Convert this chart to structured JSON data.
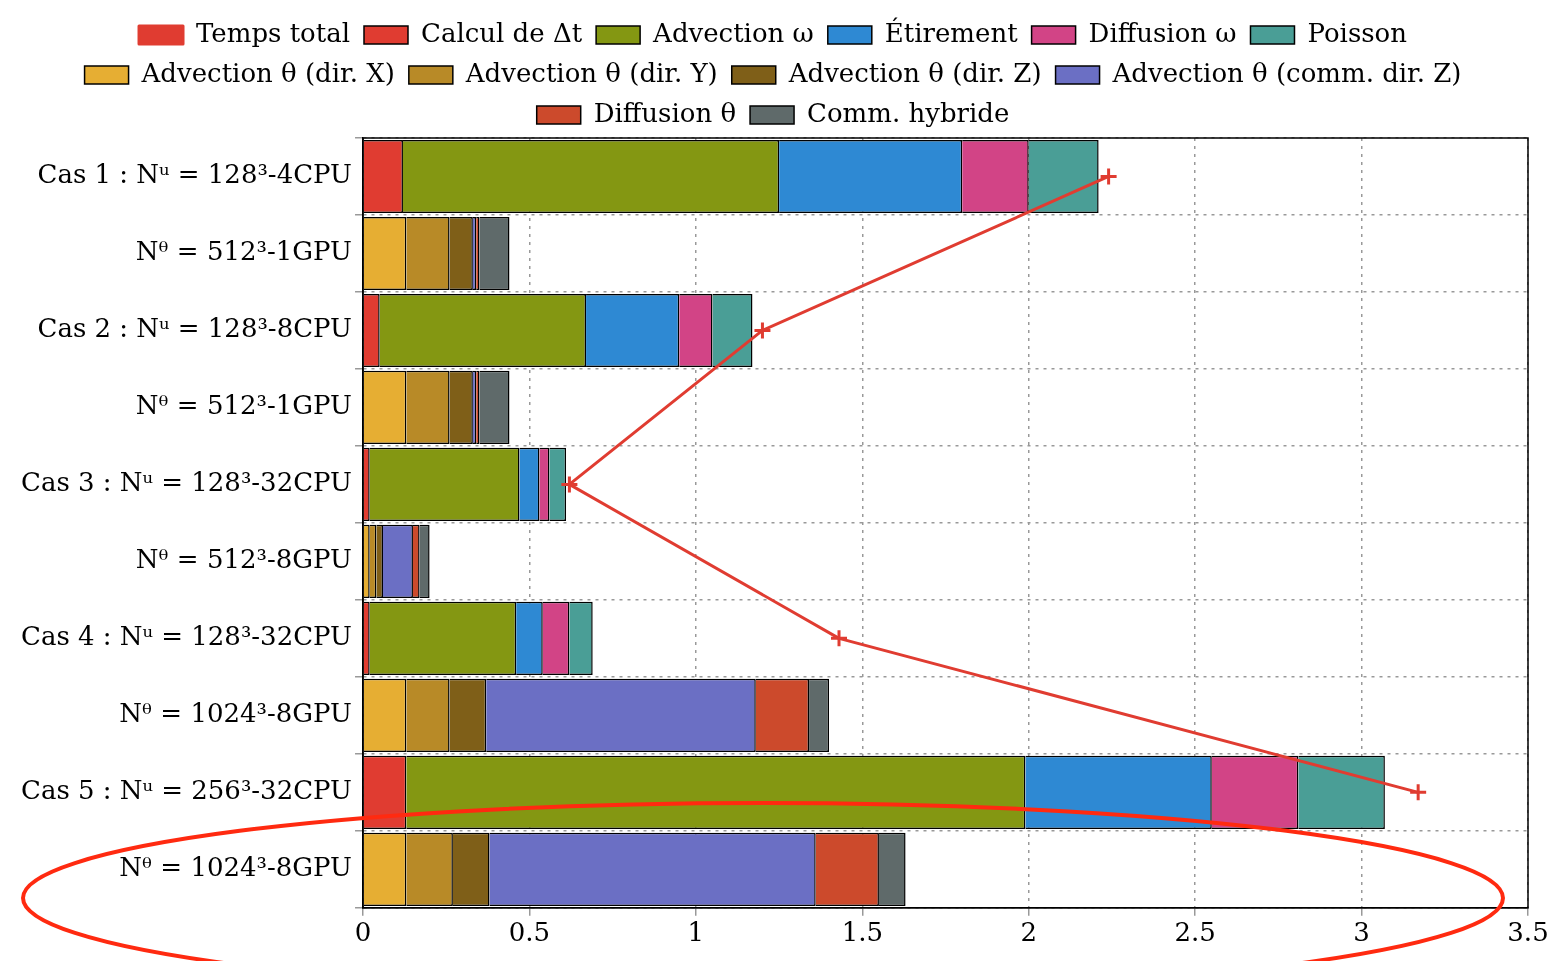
{
  "chart_data": {
    "type": "bar",
    "orientation": "horizontal",
    "stacked": true,
    "categories": [
      "Cas 1 : Nᵘ = 128³-4CPU",
      "Nᶿ = 512³-1GPU",
      "Cas 2 : Nᵘ = 128³-8CPU",
      "Nᶿ = 512³-1GPU",
      "Cas 3 : Nᵘ = 128³-32CPU",
      "Nᶿ = 512³-8GPU",
      "Cas 4 : Nᵘ = 128³-32CPU",
      "Nᶿ = 1024³-8GPU",
      "Cas 5 : Nᵘ = 256³-32CPU",
      "Nᶿ = 1024³-8GPU"
    ],
    "xlim": [
      0,
      3.5
    ],
    "xticks": [
      0,
      0.5,
      1,
      1.5,
      2,
      2.5,
      3,
      3.5
    ],
    "grid": true,
    "legend": "top",
    "series": [
      {
        "name": "Temps total",
        "type": "line",
        "color": "#e03c31",
        "marker": "cross",
        "values": [
          2.24,
          null,
          1.2,
          null,
          0.62,
          null,
          1.43,
          null,
          3.17,
          null
        ]
      },
      {
        "name": "Calcul de Δt",
        "color": "#e03c31",
        "values": [
          0.12,
          null,
          0.05,
          null,
          0.02,
          null,
          0.02,
          null,
          0.13,
          null
        ]
      },
      {
        "name": "Advection ω",
        "color": "#849712",
        "values": [
          1.13,
          null,
          0.62,
          null,
          0.45,
          null,
          0.44,
          null,
          1.86,
          null
        ]
      },
      {
        "name": "Étirement",
        "color": "#2e89d3",
        "values": [
          0.55,
          null,
          0.28,
          null,
          0.06,
          null,
          0.08,
          null,
          0.56,
          null
        ]
      },
      {
        "name": "Diffusion ω",
        "color": "#d24486",
        "values": [
          0.2,
          null,
          0.1,
          null,
          0.03,
          null,
          0.08,
          null,
          0.26,
          null
        ]
      },
      {
        "name": "Poisson",
        "color": "#4a9e96",
        "values": [
          0.21,
          null,
          0.12,
          null,
          0.05,
          null,
          0.07,
          null,
          0.26,
          null
        ]
      },
      {
        "name": "Advection θ (dir. X)",
        "color": "#e6ae33",
        "values": [
          null,
          0.13,
          null,
          0.13,
          null,
          0.02,
          null,
          0.13,
          null,
          0.13
        ]
      },
      {
        "name": "Advection θ (dir. Y)",
        "color": "#b88a27",
        "values": [
          null,
          0.13,
          null,
          0.13,
          null,
          0.02,
          null,
          0.13,
          null,
          0.14
        ]
      },
      {
        "name": "Advection θ (dir. Z)",
        "color": "#7f5f18",
        "values": [
          null,
          0.07,
          null,
          0.07,
          null,
          0.02,
          null,
          0.11,
          null,
          0.11
        ]
      },
      {
        "name": "Advection θ (comm. dir. Z)",
        "color": "#6b6fc4",
        "values": [
          null,
          0.01,
          null,
          0.01,
          null,
          0.09,
          null,
          0.81,
          null,
          0.98
        ]
      },
      {
        "name": "Diffusion θ",
        "color": "#cc4a2c",
        "values": [
          null,
          0.01,
          null,
          0.01,
          null,
          0.02,
          null,
          0.16,
          null,
          0.19
        ]
      },
      {
        "name": "Comm. hybride",
        "color": "#5f6a6a",
        "values": [
          null,
          0.09,
          null,
          0.09,
          null,
          0.03,
          null,
          0.06,
          null,
          0.08
        ]
      }
    ]
  }
}
